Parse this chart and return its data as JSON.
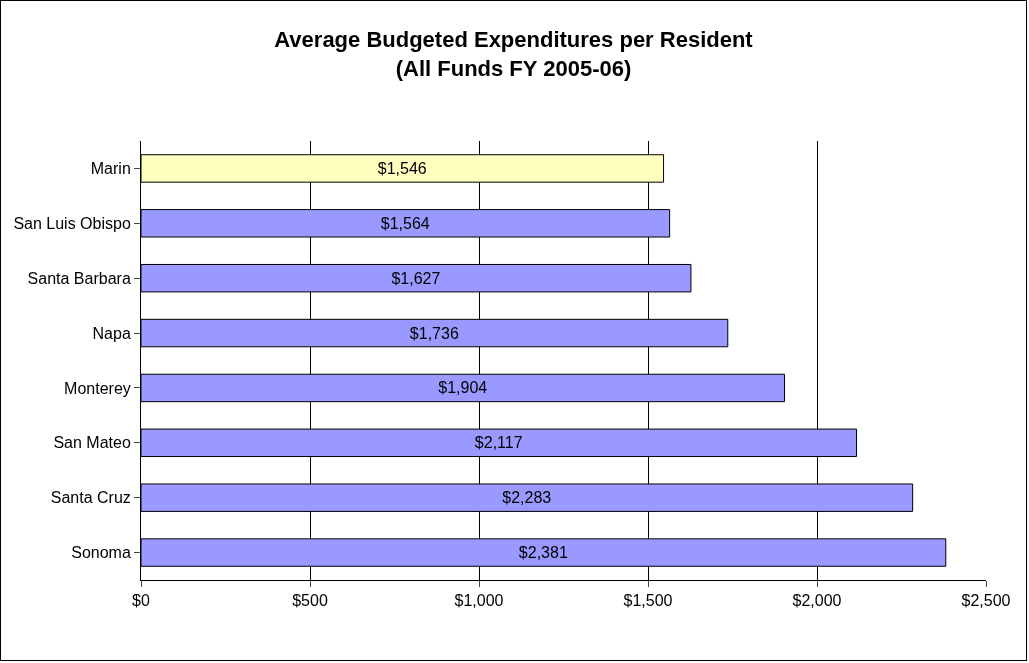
{
  "chart_data": {
    "type": "bar",
    "orientation": "horizontal",
    "title": "Average Budgeted Expenditures per Resident\n(All Funds FY 2005-06)",
    "categories": [
      "Marin",
      "San Luis Obispo",
      "Santa Barbara",
      "Napa",
      "Monterey",
      "San Mateo",
      "Santa Cruz",
      "Sonoma"
    ],
    "values": [
      1546,
      1564,
      1627,
      1736,
      1904,
      2117,
      2283,
      2381
    ],
    "value_labels": [
      "$1,546",
      "$1,564",
      "$1,627",
      "$1,736",
      "$1,904",
      "$2,117",
      "$2,283",
      "$2,381"
    ],
    "colors": [
      "#ffffc0",
      "#9999ff",
      "#9999ff",
      "#9999ff",
      "#9999ff",
      "#9999ff",
      "#9999ff",
      "#9999ff"
    ],
    "xlim": [
      0,
      2500
    ],
    "xticks": [
      {
        "value": 0,
        "label": "$0"
      },
      {
        "value": 500,
        "label": "$500"
      },
      {
        "value": 1000,
        "label": "$1,000"
      },
      {
        "value": 1500,
        "label": "$1,500"
      },
      {
        "value": 2000,
        "label": "$2,000"
      },
      {
        "value": 2500,
        "label": "$2,500"
      }
    ],
    "grid": "x"
  }
}
